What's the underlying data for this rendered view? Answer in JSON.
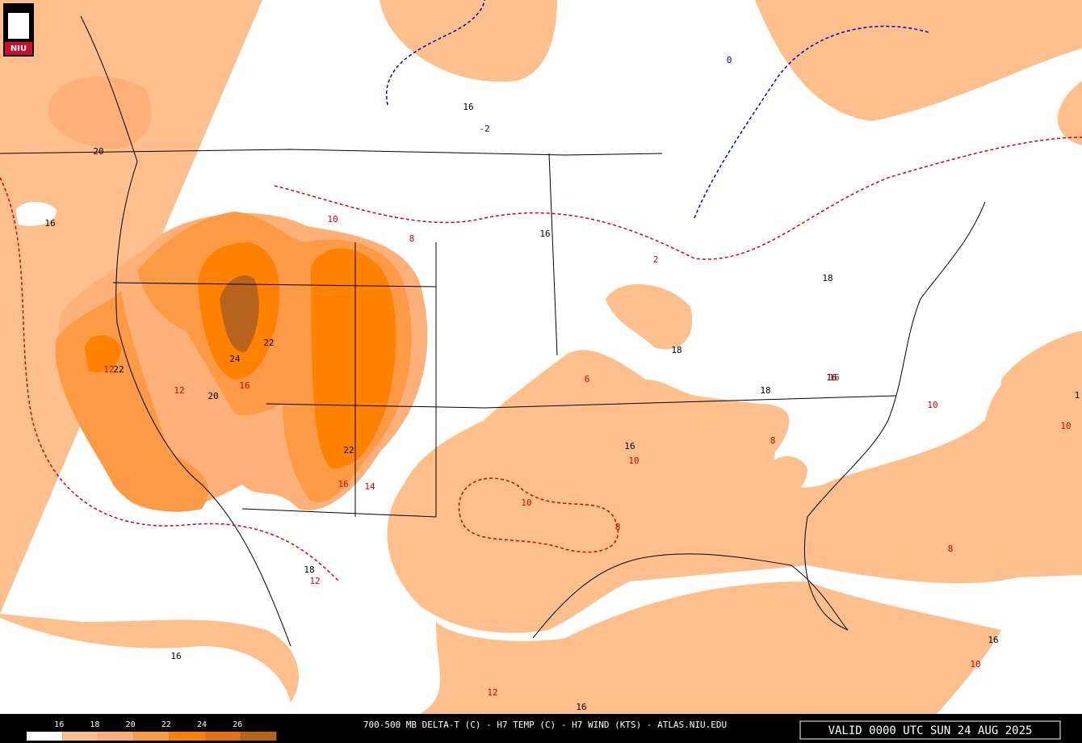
{
  "logo": "NIU",
  "legend": {
    "labels": [
      16,
      18,
      20,
      22,
      24,
      26
    ],
    "colors": [
      "#ffffff",
      "#fdc08c",
      "#fdb077",
      "#fd9a45",
      "#fe8200",
      "#e07010",
      "#b8641e"
    ]
  },
  "footer": {
    "title": "700-500 MB DELTA-T (C) - H7 TEMP (C) - H7 WIND (KTS) - ATLAS.NIU.EDU",
    "valid": "VALID 0000 UTC SUN 24 AUG 2025"
  },
  "delta_t_labels": [
    "16",
    "20",
    "16",
    "16",
    "18",
    "18",
    "22",
    "24",
    "22",
    "20",
    "22",
    "16",
    "18",
    "16",
    "18",
    "16",
    "16",
    "16",
    "1"
  ],
  "temp_labels": [
    "10",
    "8",
    "2",
    "12",
    "12",
    "16",
    "14",
    "16",
    "10",
    "10",
    "8",
    "8",
    "8",
    "10",
    "10",
    "12",
    "12",
    "10",
    "6",
    "16"
  ],
  "cold_labels": [
    "0",
    "-2"
  ]
}
